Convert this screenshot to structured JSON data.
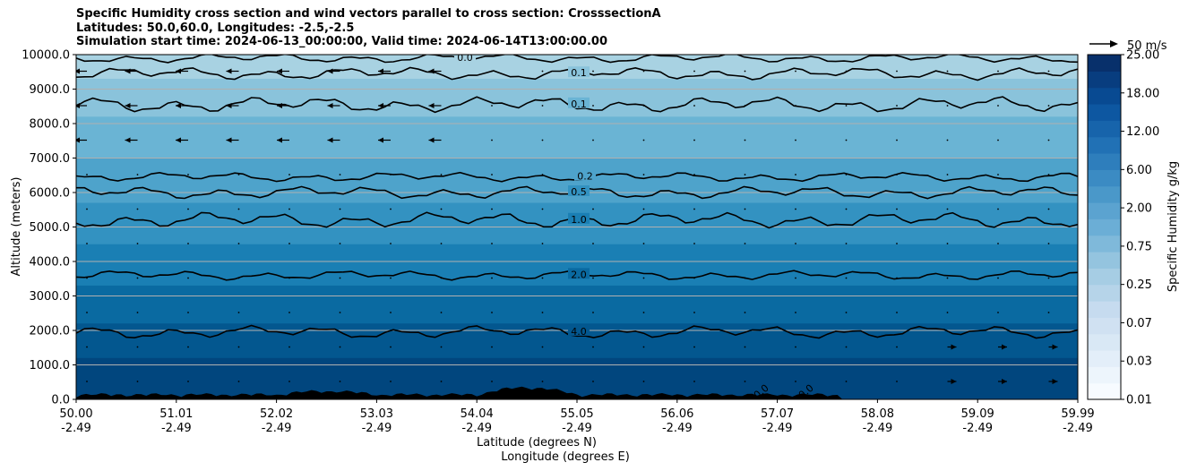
{
  "chart_data": {
    "type": "contour",
    "title_lines": [
      "Specific Humidity cross section and wind vectors parallel to cross section: CrosssectionA",
      "Latitudes: 50.0,60.0, Longitudes: -2.5,-2.5",
      "Simulation start time: 2024-06-13_00:00:00, Valid time: 2024-06-14T13:00:00.00"
    ],
    "ylabel": "Altitude (meters)",
    "xlabel_lat": "Latitude (degrees N)",
    "xlabel_lon": "Longitude (degrees E)",
    "ylim": [
      0,
      10000
    ],
    "yticks": [
      "0.0",
      "1000.0",
      "2000.0",
      "3000.0",
      "4000.0",
      "5000.0",
      "6000.0",
      "7000.0",
      "8000.0",
      "9000.0",
      "10000.0"
    ],
    "xticks_lat": [
      "50.00",
      "51.01",
      "52.02",
      "53.03",
      "54.04",
      "55.05",
      "56.06",
      "57.07",
      "58.08",
      "59.09",
      "59.99"
    ],
    "xticks_lon": [
      "-2.49",
      "-2.49",
      "-2.49",
      "-2.49",
      "-2.49",
      "-2.49",
      "-2.49",
      "-2.49",
      "-2.49",
      "-2.49",
      "-2.49"
    ],
    "colorbar": {
      "label": "Specific Humidity g/kg",
      "ticks": [
        "0.01",
        "0.03",
        "0.07",
        "0.25",
        "0.75",
        "2.00",
        "6.00",
        "12.00",
        "18.00",
        "25.00"
      ],
      "n_levels": 21,
      "color_low": "#f7fbff",
      "color_high": "#08306b"
    },
    "quiver_key": "50 m/s",
    "contour_levels": [
      {
        "label": "0.0",
        "altitude": 9900
      },
      {
        "label": "0.1",
        "altitude": 9450
      },
      {
        "label": "0.1",
        "altitude": 8550
      },
      {
        "label": "0.2",
        "altitude": 6450
      },
      {
        "label": "0.5",
        "altitude": 6000
      },
      {
        "label": "1.0",
        "altitude": 5200
      },
      {
        "label": "2.0",
        "altitude": 3600
      },
      {
        "label": "4.0",
        "altitude": 1950
      }
    ],
    "terrain_labels": [
      "0.0",
      "0.0"
    ]
  }
}
